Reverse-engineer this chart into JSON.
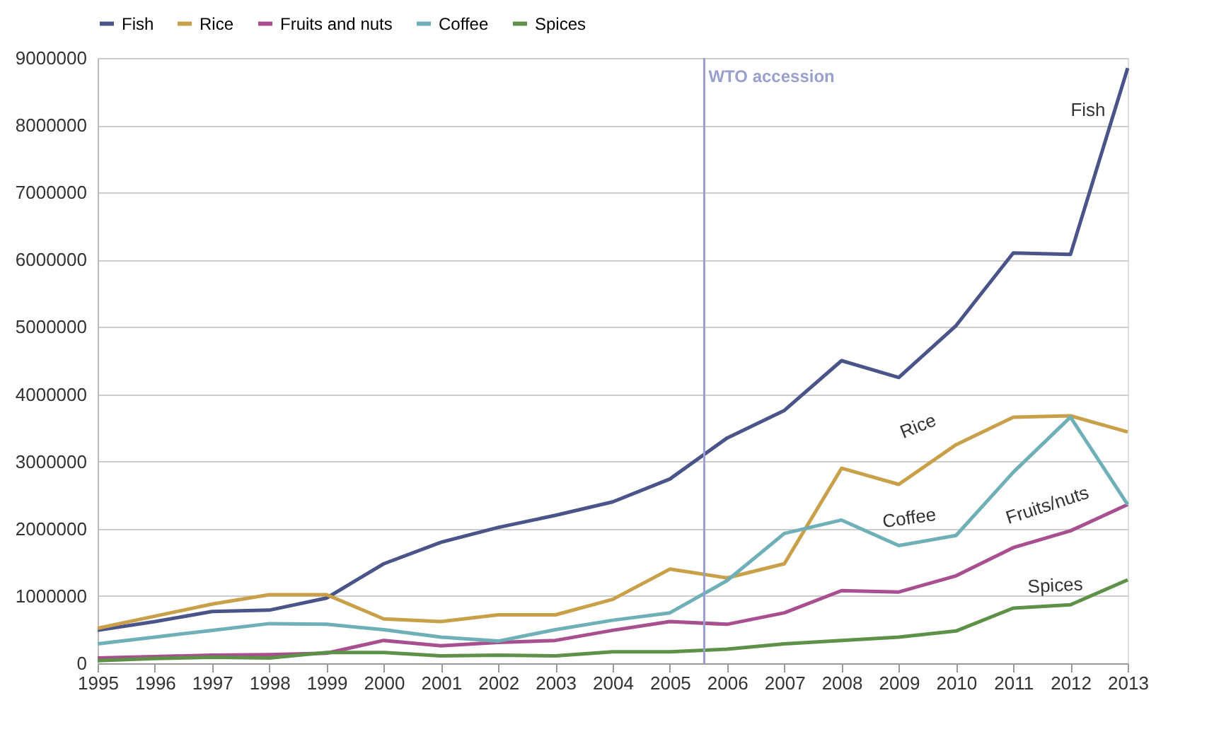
{
  "chart_data": {
    "type": "line",
    "x": [
      1995,
      1996,
      1997,
      1998,
      1999,
      2000,
      2001,
      2002,
      2003,
      2004,
      2005,
      2006,
      2007,
      2008,
      2009,
      2010,
      2011,
      2012,
      2013
    ],
    "series": [
      {
        "name": "Fish",
        "color": "#4a5488",
        "values": [
          490000,
          620000,
          770000,
          790000,
          970000,
          1480000,
          1800000,
          2020000,
          2200000,
          2400000,
          2740000,
          3350000,
          3760000,
          4500000,
          4250000,
          5020000,
          6100000,
          6080000,
          8850000
        ]
      },
      {
        "name": "Rice",
        "color": "#c9a04a",
        "values": [
          520000,
          700000,
          880000,
          1020000,
          1020000,
          660000,
          620000,
          720000,
          720000,
          950000,
          1400000,
          1270000,
          1480000,
          2900000,
          2660000,
          3250000,
          3660000,
          3680000,
          3440000
        ]
      },
      {
        "name": "Fruits and nuts",
        "color": "#a8508f",
        "values": [
          80000,
          100000,
          120000,
          130000,
          150000,
          340000,
          260000,
          310000,
          340000,
          490000,
          620000,
          580000,
          750000,
          1080000,
          1060000,
          1300000,
          1720000,
          1970000,
          2360000
        ]
      },
      {
        "name": "Coffee",
        "color": "#6fb0b8",
        "values": [
          290000,
          390000,
          490000,
          590000,
          580000,
          500000,
          390000,
          330000,
          500000,
          640000,
          750000,
          1230000,
          1930000,
          2130000,
          1750000,
          1900000,
          2840000,
          3660000,
          2360000
        ]
      },
      {
        "name": "Spices",
        "color": "#5e9148",
        "values": [
          40000,
          70000,
          90000,
          80000,
          160000,
          160000,
          110000,
          120000,
          110000,
          170000,
          170000,
          210000,
          290000,
          340000,
          390000,
          480000,
          820000,
          870000,
          1240000
        ]
      }
    ],
    "xlim": [
      1995,
      2013
    ],
    "xticks": [
      1995,
      1996,
      1997,
      1998,
      1999,
      2000,
      2001,
      2002,
      2003,
      2004,
      2005,
      2006,
      2007,
      2008,
      2009,
      2010,
      2011,
      2012,
      2013
    ],
    "ylim": [
      0,
      9000000
    ],
    "yticks": [
      0,
      1000000,
      2000000,
      3000000,
      4000000,
      5000000,
      6000000,
      7000000,
      8000000,
      9000000
    ],
    "grid": "y",
    "legend": "top",
    "line_style": "solid",
    "marker": "none",
    "ref_lines": [
      {
        "axis": "x",
        "value": 2005.6,
        "label": "WTO accession",
        "color": "#9aa0cc"
      }
    ],
    "annotations": [
      {
        "text": "Fish",
        "x": 2013,
        "y": 8850000
      },
      {
        "text": "Rice",
        "x": 2010,
        "y": 3250000
      },
      {
        "text": "Coffee",
        "x": 2009,
        "y": 1750000
      },
      {
        "text": "Fruits/nuts",
        "x": 2012,
        "y": 1970000
      },
      {
        "text": "Spices",
        "x": 2012,
        "y": 870000
      }
    ]
  }
}
